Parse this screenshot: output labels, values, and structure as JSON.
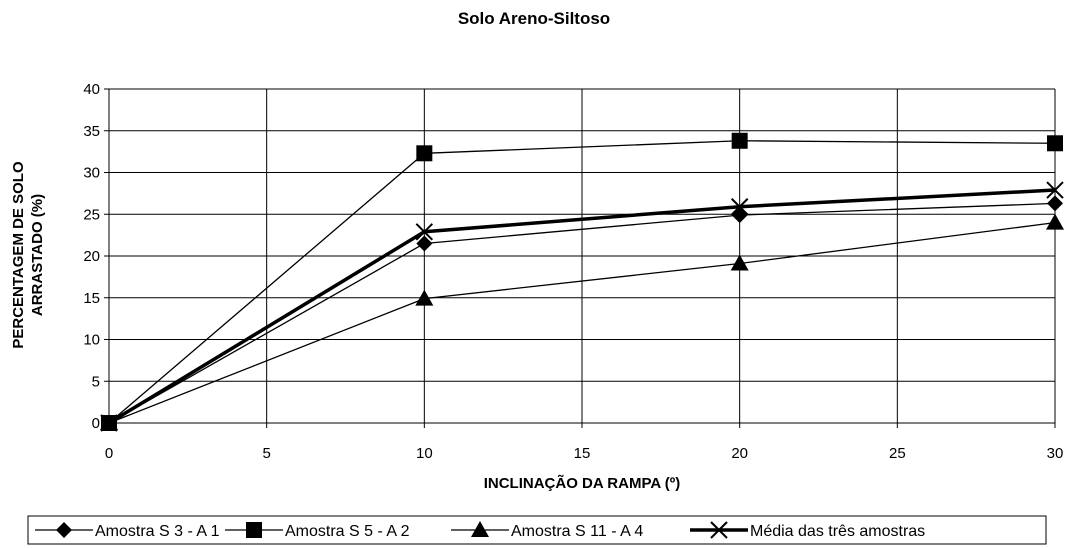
{
  "chart_data": {
    "type": "line",
    "title": "Solo Areno-Siltoso",
    "xlabel": "INCLINAÇÃO DA RAMPA (º)",
    "ylabel_lines": [
      "PERCENTAGEM DE SOLO",
      "ARRASTADO (%)"
    ],
    "xlim": [
      0,
      30
    ],
    "ylim": [
      0,
      40
    ],
    "xticks": [
      0,
      5,
      10,
      15,
      20,
      25,
      30
    ],
    "yticks": [
      0,
      5,
      10,
      15,
      20,
      25,
      30,
      35,
      40
    ],
    "grid": true,
    "legend_position": "bottom",
    "x": [
      0,
      10,
      20,
      30
    ],
    "series": [
      {
        "name": "Amostra S 3 - A 1",
        "marker": "diamond",
        "values": [
          0,
          21.5,
          24.9,
          26.3
        ]
      },
      {
        "name": "Amostra S 5 - A 2",
        "marker": "square",
        "values": [
          0,
          32.3,
          33.8,
          33.5
        ]
      },
      {
        "name": "Amostra S 11 - A 4",
        "marker": "triangle",
        "values": [
          0,
          14.9,
          19.1,
          24.0
        ]
      },
      {
        "name": "Média das três amostras",
        "marker": "x",
        "values": [
          0,
          22.9,
          25.9,
          27.9
        ],
        "bold": true
      }
    ]
  }
}
